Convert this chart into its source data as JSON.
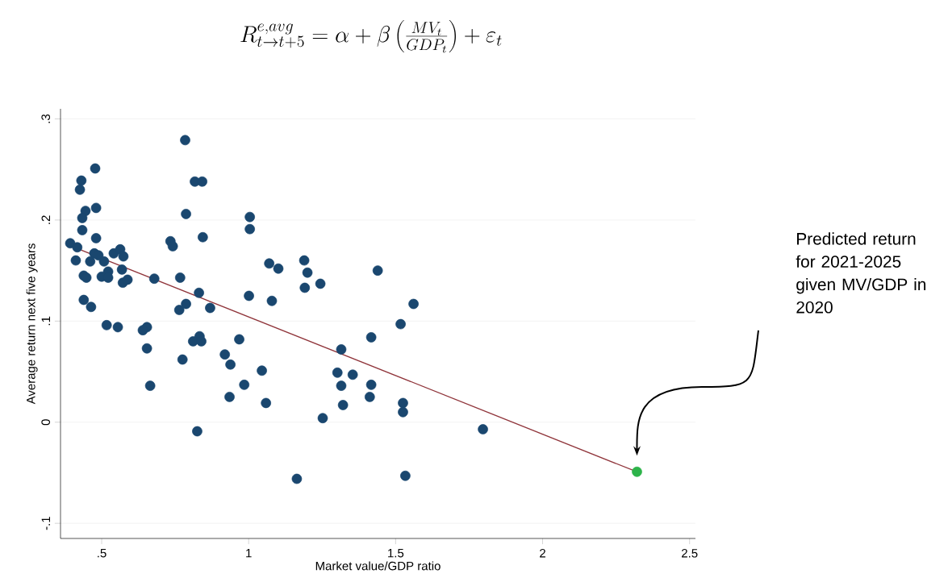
{
  "chart_data": {
    "type": "scatter",
    "title": "R^{e,avg}_{t\\rightarrow t+5} = \\alpha + \\beta \\left(\\frac{MV_t}{GDP_t}\\right) + \\varepsilon_t",
    "xlabel": "Market value/GDP ratio",
    "ylabel": "Average return next five years",
    "xlim": [
      0.36,
      2.52
    ],
    "ylim": [
      -0.115,
      0.31
    ],
    "xticks": [
      {
        "value": 0.5,
        "label": ".5"
      },
      1,
      1.5,
      2,
      2.5
    ],
    "yticks": [
      {
        "value": -0.1,
        "label": "-.1"
      },
      0,
      {
        "value": 0.1,
        "label": ".1"
      },
      {
        "value": 0.2,
        "label": ".2"
      },
      {
        "value": 0.3,
        "label": ".3"
      }
    ],
    "grid": "y",
    "series": [
      {
        "marker": "circle",
        "color": "#1a476f",
        "x": [
          0.784,
          0.817,
          0.842,
          0.478,
          0.431,
          0.426,
          0.481,
          0.445,
          0.434,
          0.434,
          0.481,
          0.787,
          0.844,
          0.393,
          0.417,
          0.412,
          0.475,
          0.489,
          0.461,
          0.508,
          0.541,
          0.563,
          0.574,
          0.569,
          0.522,
          0.5,
          0.522,
          0.439,
          0.448,
          0.572,
          0.588,
          0.679,
          0.734,
          0.742,
          0.767,
          0.831,
          0.787,
          0.764,
          0.869,
          0.439,
          0.464,
          0.517,
          0.555,
          0.654,
          0.64,
          0.654,
          0.775,
          0.833,
          0.811,
          0.839,
          0.665,
          0.919,
          0.938,
          0.935,
          0.968,
          1.004,
          1.004,
          1.07,
          1.101,
          1.189,
          1.2,
          1.191,
          1.244,
          1.001,
          1.079,
          1.045,
          0.985,
          1.059,
          1.252,
          1.164,
          0.825,
          1.315,
          1.302,
          1.315,
          1.321,
          1.439,
          1.561,
          1.517,
          1.417,
          1.354,
          1.417,
          1.412,
          1.525,
          1.525,
          1.797,
          1.533
        ],
        "values": [
          0.279,
          0.238,
          0.238,
          0.251,
          0.239,
          0.23,
          0.212,
          0.209,
          0.202,
          0.19,
          0.182,
          0.206,
          0.183,
          0.177,
          0.173,
          0.16,
          0.167,
          0.165,
          0.159,
          0.159,
          0.167,
          0.171,
          0.164,
          0.151,
          0.149,
          0.144,
          0.143,
          0.145,
          0.143,
          0.138,
          0.141,
          0.142,
          0.179,
          0.174,
          0.143,
          0.128,
          0.117,
          0.111,
          0.113,
          0.121,
          0.114,
          0.096,
          0.094,
          0.094,
          0.091,
          0.073,
          0.062,
          0.085,
          0.08,
          0.08,
          0.036,
          0.067,
          0.057,
          0.025,
          0.082,
          0.203,
          0.191,
          0.157,
          0.152,
          0.16,
          0.148,
          0.133,
          0.137,
          0.125,
          0.12,
          0.051,
          0.037,
          0.019,
          0.004,
          -0.056,
          -0.009,
          0.072,
          0.049,
          0.036,
          0.017,
          0.15,
          0.117,
          0.097,
          0.084,
          0.047,
          0.037,
          0.025,
          0.019,
          0.01,
          -0.007,
          -0.053
        ]
      },
      {
        "type": "line",
        "marker": "none",
        "color": "#90353b",
        "x": [
          0.39,
          2.32
        ],
        "values": [
          0.175,
          -0.049
        ]
      },
      {
        "marker": "circle",
        "color": "#2db34a",
        "x": [
          2.321
        ],
        "values": [
          -0.049
        ]
      }
    ],
    "annotations": [
      "Predicted return for 2021-2025 given MV/GDP in 2020"
    ]
  }
}
